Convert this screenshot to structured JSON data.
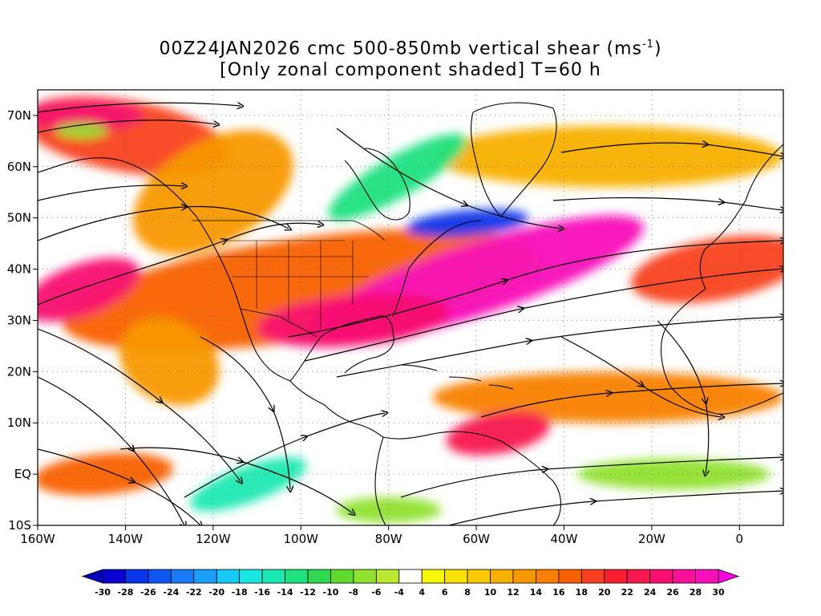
{
  "title": {
    "line1_prefix": "00Z24JAN2026 cmc 500-850mb vertical shear (ms",
    "line1_sup": "-1",
    "line1_suffix": ")",
    "line2": "[Only zonal component shaded] T=60 h"
  },
  "map": {
    "lon_range": [
      -160,
      10
    ],
    "lat_range": [
      -10,
      75
    ],
    "x_ticks": [
      {
        "lon": -160,
        "label": "160W"
      },
      {
        "lon": -140,
        "label": "140W"
      },
      {
        "lon": -120,
        "label": "120W"
      },
      {
        "lon": -100,
        "label": "100W"
      },
      {
        "lon": -80,
        "label": "80W"
      },
      {
        "lon": -60,
        "label": "60W"
      },
      {
        "lon": -40,
        "label": "40W"
      },
      {
        "lon": -20,
        "label": "20W"
      },
      {
        "lon": 0,
        "label": "0"
      }
    ],
    "y_ticks": [
      {
        "lat": 70,
        "label": "70N"
      },
      {
        "lat": 60,
        "label": "60N"
      },
      {
        "lat": 50,
        "label": "50N"
      },
      {
        "lat": 40,
        "label": "40N"
      },
      {
        "lat": 30,
        "label": "30N"
      },
      {
        "lat": 20,
        "label": "20N"
      },
      {
        "lat": 10,
        "label": "10N"
      },
      {
        "lat": 0,
        "label": "EQ"
      },
      {
        "lat": -10,
        "label": "10S"
      }
    ],
    "grid": "dotted",
    "shear_blobs": [
      {
        "lon": -100,
        "lat": 36,
        "rx": 55,
        "ry": 10,
        "rot": -8,
        "value": 16
      },
      {
        "lon": -60,
        "lat": 38,
        "rx": 40,
        "ry": 7,
        "rot": -18,
        "value": 28
      },
      {
        "lon": -88,
        "lat": 30,
        "rx": 22,
        "ry": 5,
        "rot": -5,
        "value": 24
      },
      {
        "lon": -150,
        "lat": 36,
        "rx": 14,
        "ry": 5,
        "rot": -20,
        "value": 24
      },
      {
        "lon": -140,
        "lat": 66,
        "rx": 24,
        "ry": 7,
        "rot": 10,
        "value": 18
      },
      {
        "lon": -150,
        "lat": 70,
        "rx": 14,
        "ry": 3,
        "rot": 0,
        "value": 24
      },
      {
        "lon": -120,
        "lat": 55,
        "rx": 20,
        "ry": 10,
        "rot": -30,
        "value": 12
      },
      {
        "lon": -30,
        "lat": 15,
        "rx": 40,
        "ry": 5,
        "rot": 0,
        "value": 14
      },
      {
        "lon": -55,
        "lat": 8,
        "rx": 12,
        "ry": 4,
        "rot": -10,
        "value": 22
      },
      {
        "lon": -145,
        "lat": 0,
        "rx": 16,
        "ry": 4,
        "rot": -5,
        "value": 16
      },
      {
        "lon": -5,
        "lat": 40,
        "rx": 20,
        "ry": 6,
        "rot": -10,
        "value": 18
      },
      {
        "lon": -30,
        "lat": 62,
        "rx": 40,
        "ry": 6,
        "rot": 0,
        "value": 10
      },
      {
        "lon": -130,
        "lat": 22,
        "rx": 12,
        "ry": 8,
        "rot": 30,
        "value": 12
      },
      {
        "lon": -78,
        "lat": 58,
        "rx": 18,
        "ry": 4,
        "rot": -30,
        "value": -14
      },
      {
        "lon": -62,
        "lat": 49,
        "rx": 14,
        "ry": 2.5,
        "rot": -5,
        "value": -28
      },
      {
        "lon": -112,
        "lat": -2,
        "rx": 14,
        "ry": 3.5,
        "rot": -20,
        "value": -16
      },
      {
        "lon": -15,
        "lat": 0,
        "rx": 22,
        "ry": 3,
        "rot": 0,
        "value": -8
      },
      {
        "lon": -80,
        "lat": -7,
        "rx": 12,
        "ry": 2.5,
        "rot": 0,
        "value": -8
      },
      {
        "lon": -150,
        "lat": 67,
        "rx": 6,
        "ry": 1.5,
        "rot": 0,
        "value": -8
      }
    ]
  },
  "colorbar": {
    "labels": [
      "-30",
      "-28",
      "-26",
      "-24",
      "-22",
      "-20",
      "-18",
      "-16",
      "-14",
      "-12",
      "-10",
      "-8",
      "-6",
      "-4",
      "4",
      "6",
      "8",
      "10",
      "12",
      "14",
      "16",
      "18",
      "20",
      "22",
      "24",
      "26",
      "28",
      "30"
    ],
    "colors": [
      "#0a00d0",
      "#0b33e8",
      "#1056f0",
      "#1a7af4",
      "#1a9ef8",
      "#1ac8f8",
      "#1ae8e0",
      "#1ae8b0",
      "#20e080",
      "#30d850",
      "#60d830",
      "#90e030",
      "#b8e830",
      "#ffffff",
      "#f8f800",
      "#f8e000",
      "#f8c800",
      "#f8b000",
      "#f89800",
      "#f88000",
      "#f86000",
      "#f84020",
      "#f82030",
      "#f81850",
      "#f81070",
      "#f81098",
      "#f810b8"
    ],
    "under_color": "#0000c0",
    "over_color": "#ff00e0"
  }
}
